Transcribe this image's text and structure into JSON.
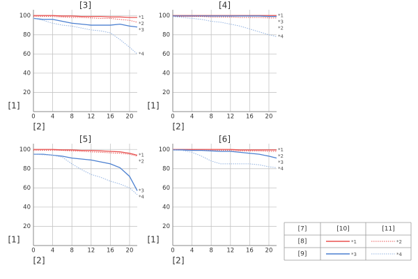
{
  "chart_data": [
    {
      "type": "line",
      "title": "[3]",
      "y_label": "[1]",
      "x_label": "[2]",
      "x": [
        0,
        2,
        4,
        6,
        8,
        10,
        12,
        14,
        16,
        18,
        20,
        21.6
      ],
      "xlim": [
        0,
        21.6
      ],
      "ylim": [
        0,
        106
      ],
      "xticks": [
        0,
        4,
        8,
        12,
        16,
        20
      ],
      "yticks": [
        20,
        40,
        60,
        80,
        100
      ],
      "grid": true,
      "series": [
        {
          "name": "*1",
          "color": "#e8504f",
          "style": "solid",
          "values": [
            100,
            100,
            100,
            99.5,
            99.5,
            99,
            99,
            99,
            98.5,
            98.5,
            98,
            98
          ]
        },
        {
          "name": "*2",
          "color": "#e8504f",
          "style": "dotted",
          "values": [
            99,
            99,
            99,
            98.5,
            98,
            98,
            97.5,
            97,
            97,
            96,
            95,
            93
          ]
        },
        {
          "name": "*3",
          "color": "#4a7fd0",
          "style": "solid",
          "values": [
            97,
            96,
            96,
            94,
            92,
            91,
            90,
            90,
            90,
            91,
            89,
            88
          ]
        },
        {
          "name": "*4",
          "color": "#8fb0e0",
          "style": "dotted",
          "values": [
            97,
            95,
            92,
            90,
            89,
            87,
            85,
            84,
            82,
            75,
            67,
            60
          ]
        }
      ]
    },
    {
      "type": "line",
      "title": "[4]",
      "y_label": "[1]",
      "x_label": "[2]",
      "x": [
        0,
        2,
        4,
        6,
        8,
        10,
        12,
        14,
        16,
        18,
        20,
        21.6
      ],
      "xlim": [
        0,
        21.6
      ],
      "ylim": [
        0,
        106
      ],
      "xticks": [
        0,
        4,
        8,
        12,
        16,
        20
      ],
      "yticks": [
        20,
        40,
        60,
        80,
        100
      ],
      "grid": true,
      "series": [
        {
          "name": "*1",
          "color": "#e8504f",
          "style": "solid",
          "values": [
            100,
            100,
            100,
            100,
            100,
            100,
            100,
            100,
            100,
            100,
            100,
            100
          ]
        },
        {
          "name": "*3",
          "color": "#4a7fd0",
          "style": "solid",
          "values": [
            99.5,
            99.5,
            99.5,
            99.5,
            99.5,
            99.5,
            99.5,
            99.5,
            99.5,
            99.5,
            99,
            99
          ]
        },
        {
          "name": "*2",
          "color": "#e8504f",
          "style": "dotted",
          "values": [
            99,
            99,
            99,
            99,
            98.5,
            98.5,
            98.5,
            98,
            98,
            98,
            97.5,
            97.5
          ]
        },
        {
          "name": "*4",
          "color": "#8fb0e0",
          "style": "dotted",
          "values": [
            99,
            98,
            97,
            96,
            94,
            93,
            91,
            89,
            86,
            83,
            80,
            78
          ]
        }
      ]
    },
    {
      "type": "line",
      "title": "[5]",
      "y_label": "[1]",
      "x_label": "[2]",
      "x": [
        0,
        2,
        4,
        6,
        8,
        10,
        12,
        14,
        16,
        18,
        20,
        21.6
      ],
      "xlim": [
        0,
        21.6
      ],
      "ylim": [
        0,
        106
      ],
      "xticks": [
        0,
        4,
        8,
        12,
        16,
        20
      ],
      "yticks": [
        20,
        40,
        60,
        80,
        100
      ],
      "grid": true,
      "series": [
        {
          "name": "*1",
          "color": "#e8504f",
          "style": "solid",
          "values": [
            100,
            100,
            100,
            99.5,
            99.5,
            99,
            99,
            98.5,
            98,
            97.5,
            96,
            94
          ]
        },
        {
          "name": "*2",
          "color": "#e8504f",
          "style": "dotted",
          "values": [
            99,
            99,
            99,
            99,
            98.5,
            98,
            97.5,
            97,
            96.5,
            96,
            95,
            93
          ]
        },
        {
          "name": "*3",
          "color": "#4a7fd0",
          "style": "solid",
          "values": [
            95,
            95,
            94,
            93,
            91,
            90,
            89,
            87,
            85,
            81,
            72,
            57
          ]
        },
        {
          "name": "*4",
          "color": "#8fb0e0",
          "style": "dotted",
          "values": [
            95,
            94.5,
            94,
            92,
            85,
            79,
            74,
            71,
            67,
            64,
            60,
            53
          ]
        }
      ]
    },
    {
      "type": "line",
      "title": "[6]",
      "y_label": "[1]",
      "x_label": "[2]",
      "x": [
        0,
        2,
        4,
        6,
        8,
        10,
        12,
        14,
        16,
        18,
        20,
        21.6
      ],
      "xlim": [
        0,
        21.6
      ],
      "ylim": [
        0,
        106
      ],
      "xticks": [
        0,
        4,
        8,
        12,
        16,
        20
      ],
      "yticks": [
        20,
        40,
        60,
        80,
        100
      ],
      "grid": true,
      "series": [
        {
          "name": "*1",
          "color": "#e8504f",
          "style": "solid",
          "values": [
            100,
            100,
            100,
            100,
            100,
            100,
            100,
            99.5,
            99.5,
            99.5,
            99.5,
            99.5
          ]
        },
        {
          "name": "*2",
          "color": "#e8504f",
          "style": "dotted",
          "values": [
            99.5,
            99.5,
            99.5,
            99,
            99,
            99,
            99,
            98.5,
            98.5,
            98.5,
            98,
            98
          ]
        },
        {
          "name": "*3",
          "color": "#4a7fd0",
          "style": "solid",
          "values": [
            99.5,
            99.5,
            99,
            99,
            98.5,
            98,
            98,
            97,
            96,
            95,
            93,
            91
          ]
        },
        {
          "name": "*4",
          "color": "#8fb0e0",
          "style": "dotted",
          "values": [
            99.5,
            99,
            97,
            93,
            88,
            85,
            85,
            85,
            85,
            84,
            82,
            81
          ]
        }
      ]
    }
  ],
  "legend": {
    "headers": [
      "[7]",
      "[10]",
      "[11]"
    ],
    "rows": [
      {
        "label": "[8]",
        "entries": [
          "*1",
          "*2"
        ],
        "colors": [
          "#e8504f",
          "#e8504f"
        ],
        "styles": [
          "solid",
          "dotted"
        ]
      },
      {
        "label": "[9]",
        "entries": [
          "*3",
          "*4"
        ],
        "colors": [
          "#4a7fd0",
          "#8fb0e0"
        ],
        "styles": [
          "solid",
          "dotted"
        ]
      }
    ]
  }
}
